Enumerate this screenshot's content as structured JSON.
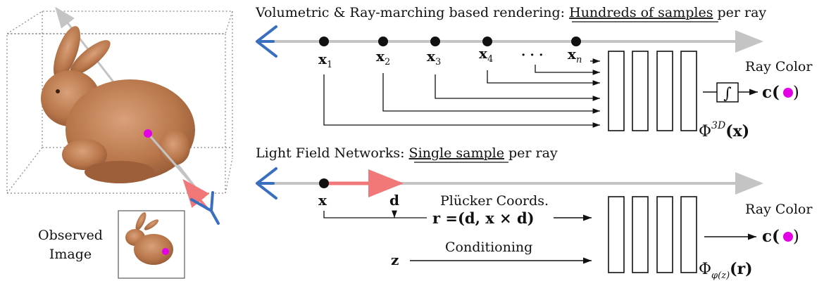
{
  "top": {
    "title_prefix": "Volumetric & Ray-marching based rendering: ",
    "title_emph": "Hundreds of samples",
    "title_suffix": " per ray",
    "samples": [
      {
        "base": "x",
        "sub": "1"
      },
      {
        "base": "x",
        "sub": "2"
      },
      {
        "base": "x",
        "sub": "3"
      },
      {
        "base": "x",
        "sub": "4"
      },
      {
        "base": "x",
        "sub": "n"
      }
    ],
    "ellipsis": "· · ·",
    "ray_color_label": "Ray Color",
    "integral_symbol": "∫",
    "output": "c(",
    "output_close": ")",
    "network": {
      "base": "Φ",
      "sup": "3D",
      "arg": "(x)"
    }
  },
  "bottom": {
    "title_prefix": "Light Field Networks: ",
    "title_emph": "Single sample",
    "title_suffix": " per ray",
    "origin_label": "x",
    "direction_label": "d",
    "plucker_label": "Plücker Coords.",
    "plucker_formula": "r =(d, x × d)",
    "conditioning_label": "Conditioning",
    "latent_label": "z",
    "ray_color_label": "Ray Color",
    "output": "c(",
    "output_close": ")",
    "network": {
      "base": "Φ",
      "sub": "φ(z)",
      "arg": "(r)"
    }
  },
  "left": {
    "observed_label_line1": "Observed",
    "observed_label_line2": "Image"
  },
  "colors": {
    "ray_gray": "#c4c4c4",
    "eye_blue": "#3a6fc0",
    "direction_red": "#f07878",
    "pixel_magenta": "#e400e4",
    "bunny": "#b8764a"
  }
}
